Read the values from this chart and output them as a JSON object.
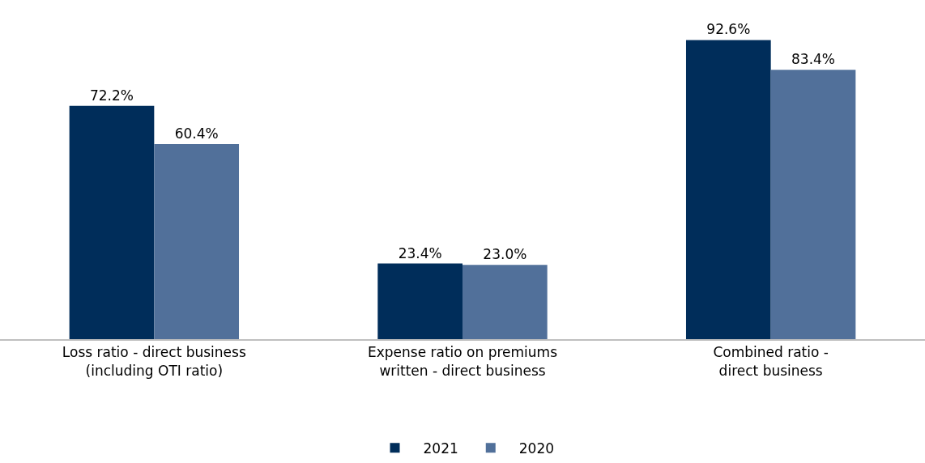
{
  "chart_data": {
    "type": "bar",
    "categories": [
      "Loss ratio - direct business\n(including OTI ratio)",
      "Expense ratio on premiums\nwritten - direct business",
      "Combined ratio -\ndirect business"
    ],
    "series": [
      {
        "name": "2021",
        "color": "#002d5a",
        "values": [
          72.2,
          23.4,
          92.6
        ],
        "value_labels": [
          "72.2%",
          "23.4%",
          "92.6%"
        ]
      },
      {
        "name": "2020",
        "color": "#51709a",
        "values": [
          60.4,
          23.0,
          83.4
        ],
        "value_labels": [
          "60.4%",
          "23.0%",
          "83.4%"
        ]
      }
    ],
    "legend": "bottom"
  }
}
